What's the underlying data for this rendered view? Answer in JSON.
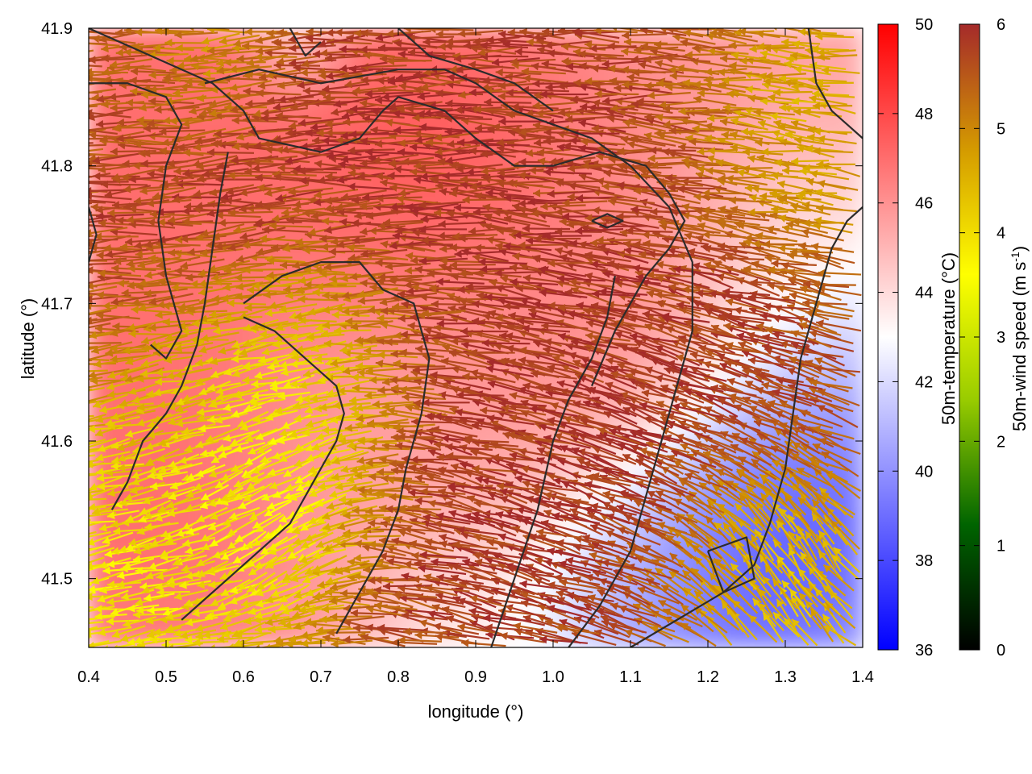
{
  "chart_data": {
    "type": "heatmap",
    "title": "",
    "xlabel": "longitude (°)",
    "ylabel": "latitude (°)",
    "xlim": [
      0.4,
      1.4
    ],
    "ylim": [
      41.45,
      41.9
    ],
    "xticks": [
      {
        "value": 0.4,
        "label": "0.4"
      },
      {
        "value": 0.5,
        "label": "0.5"
      },
      {
        "value": 0.6,
        "label": "0.6"
      },
      {
        "value": 0.7,
        "label": "0.7"
      },
      {
        "value": 0.8,
        "label": "0.8"
      },
      {
        "value": 0.9,
        "label": "0.9"
      },
      {
        "value": 1.0,
        "label": "1.0"
      },
      {
        "value": 1.1,
        "label": "1.1"
      },
      {
        "value": 1.2,
        "label": "1.2"
      },
      {
        "value": 1.3,
        "label": "1.3"
      },
      {
        "value": 1.4,
        "label": "1.4"
      }
    ],
    "yticks": [
      {
        "value": 41.5,
        "label": "41.5"
      },
      {
        "value": 41.6,
        "label": "41.6"
      },
      {
        "value": 41.7,
        "label": "41.7"
      },
      {
        "value": 41.8,
        "label": "41.8"
      },
      {
        "value": 41.9,
        "label": "41.9"
      }
    ],
    "grid": false,
    "temperature_colorbar": {
      "label": "50m-temperature (°C)",
      "range": [
        36,
        50
      ],
      "ticks": [
        {
          "value": 36,
          "label": "36"
        },
        {
          "value": 38,
          "label": "38"
        },
        {
          "value": 40,
          "label": "40"
        },
        {
          "value": 42,
          "label": "42"
        },
        {
          "value": 44,
          "label": "44"
        },
        {
          "value": 46,
          "label": "46"
        },
        {
          "value": 48,
          "label": "48"
        },
        {
          "value": 50,
          "label": "50"
        }
      ],
      "colors": [
        "#0000ff",
        "#ffffff",
        "#ff0000"
      ]
    },
    "wind_colorbar": {
      "label_main": "50m-wind speed (m s",
      "label_sup": "-1",
      "label_end": ")",
      "range": [
        0,
        6
      ],
      "ticks": [
        {
          "value": 0,
          "label": "0"
        },
        {
          "value": 1,
          "label": "1"
        },
        {
          "value": 2,
          "label": "2"
        },
        {
          "value": 3,
          "label": "3"
        },
        {
          "value": 4,
          "label": "4"
        },
        {
          "value": 5,
          "label": "5"
        },
        {
          "value": 6,
          "label": "6"
        }
      ],
      "colors": [
        "#000000",
        "#006400",
        "#99cc00",
        "#ffff00",
        "#d49a00",
        "#a52a2a"
      ]
    },
    "temperature_zones": [
      {
        "lon": 0.5,
        "lat": 41.8,
        "temp": 48.0,
        "spread": 0.2
      },
      {
        "lon": 0.62,
        "lat": 41.86,
        "temp": 47.0,
        "spread": 0.16
      },
      {
        "lon": 0.85,
        "lat": 41.8,
        "temp": 49.0,
        "spread": 0.12
      },
      {
        "lon": 1.05,
        "lat": 41.78,
        "temp": 47.0,
        "spread": 0.18
      },
      {
        "lon": 1.25,
        "lat": 41.85,
        "temp": 46.0,
        "spread": 0.15
      },
      {
        "lon": 0.5,
        "lat": 41.55,
        "temp": 48.0,
        "spread": 0.15
      },
      {
        "lon": 0.45,
        "lat": 41.65,
        "temp": 47.0,
        "spread": 0.12
      },
      {
        "lon": 0.75,
        "lat": 41.6,
        "temp": 45.0,
        "spread": 0.14
      },
      {
        "lon": 0.9,
        "lat": 41.58,
        "temp": 46.0,
        "spread": 0.12
      },
      {
        "lon": 1.0,
        "lat": 41.68,
        "temp": 46.0,
        "spread": 0.12
      },
      {
        "lon": 1.3,
        "lat": 41.75,
        "temp": 43.0,
        "spread": 0.1
      },
      {
        "lon": 1.25,
        "lat": 41.5,
        "temp": 37.0,
        "spread": 0.12
      },
      {
        "lon": 1.35,
        "lat": 41.56,
        "temp": 37.5,
        "spread": 0.1
      },
      {
        "lon": 1.38,
        "lat": 41.66,
        "temp": 40.0,
        "spread": 0.1
      },
      {
        "lon": 1.08,
        "lat": 41.5,
        "temp": 40.0,
        "spread": 0.09
      },
      {
        "lon": 0.9,
        "lat": 41.47,
        "temp": 42.5,
        "spread": 0.08
      },
      {
        "lon": 0.67,
        "lat": 41.89,
        "temp": 41.0,
        "spread": 0.04
      }
    ],
    "wind_vectors_description": "dense field of wind arrows pointing mostly west, coloured by wind speed",
    "wind_zones": [
      {
        "lon": 0.95,
        "lat": 41.76,
        "speed": 6.0,
        "dir": 180,
        "spread": 0.22
      },
      {
        "lon": 0.65,
        "lat": 41.8,
        "speed": 6.0,
        "dir": 185,
        "spread": 0.16
      },
      {
        "lon": 1.15,
        "lat": 41.6,
        "speed": 6.0,
        "dir": 150,
        "spread": 0.18
      },
      {
        "lon": 0.9,
        "lat": 41.55,
        "speed": 6.0,
        "dir": 165,
        "spread": 0.15
      },
      {
        "lon": 0.7,
        "lat": 41.65,
        "speed": 2.2,
        "dir": 200,
        "spread": 0.09
      },
      {
        "lon": 0.68,
        "lat": 41.55,
        "speed": 2.5,
        "dir": 240,
        "spread": 0.08
      },
      {
        "lon": 0.52,
        "lat": 41.58,
        "speed": 4.0,
        "dir": 200,
        "spread": 0.08
      },
      {
        "lon": 0.48,
        "lat": 41.5,
        "speed": 3.5,
        "dir": 190,
        "spread": 0.08
      },
      {
        "lon": 1.3,
        "lat": 41.5,
        "speed": 3.5,
        "dir": 95,
        "spread": 0.08
      },
      {
        "lon": 1.35,
        "lat": 41.82,
        "speed": 4.2,
        "dir": 170,
        "spread": 0.08
      },
      {
        "lon": 0.6,
        "lat": 41.88,
        "speed": 4.2,
        "dir": 185,
        "spread": 0.06
      }
    ],
    "contours": [
      [
        [
          0.4,
          41.9
        ],
        [
          0.48,
          41.88
        ],
        [
          0.56,
          41.86
        ],
        [
          0.6,
          41.84
        ],
        [
          0.62,
          41.82
        ],
        [
          0.7,
          41.81
        ],
        [
          0.75,
          41.82
        ],
        [
          0.78,
          41.84
        ],
        [
          0.8,
          41.85
        ],
        [
          0.86,
          41.84
        ],
        [
          0.9,
          41.82
        ],
        [
          0.95,
          41.8
        ],
        [
          1.0,
          41.8
        ],
        [
          1.06,
          41.81
        ],
        [
          1.12,
          41.8
        ],
        [
          1.15,
          41.78
        ],
        [
          1.17,
          41.76
        ],
        [
          1.15,
          41.74
        ],
        [
          1.12,
          41.72
        ],
        [
          1.1,
          41.7
        ],
        [
          1.08,
          41.68
        ],
        [
          1.05,
          41.64
        ]
      ],
      [
        [
          0.55,
          41.86
        ],
        [
          0.62,
          41.87
        ],
        [
          0.7,
          41.86
        ],
        [
          0.8,
          41.87
        ],
        [
          0.86,
          41.87
        ],
        [
          0.9,
          41.86
        ],
        [
          0.95,
          41.84
        ],
        [
          1.0,
          41.83
        ],
        [
          1.05,
          41.82
        ],
        [
          1.1,
          41.8
        ],
        [
          1.15,
          41.77
        ],
        [
          1.18,
          41.73
        ],
        [
          1.18,
          41.68
        ],
        [
          1.16,
          41.64
        ],
        [
          1.14,
          41.6
        ],
        [
          1.12,
          41.56
        ],
        [
          1.1,
          41.52
        ],
        [
          1.06,
          41.48
        ],
        [
          1.02,
          41.45
        ]
      ],
      [
        [
          0.58,
          41.81
        ],
        [
          0.57,
          41.78
        ],
        [
          0.56,
          41.74
        ],
        [
          0.55,
          41.7
        ],
        [
          0.54,
          41.67
        ],
        [
          0.52,
          41.64
        ],
        [
          0.5,
          41.62
        ],
        [
          0.47,
          41.6
        ],
        [
          0.45,
          41.57
        ],
        [
          0.43,
          41.55
        ]
      ],
      [
        [
          0.6,
          41.7
        ],
        [
          0.65,
          41.72
        ],
        [
          0.7,
          41.73
        ],
        [
          0.75,
          41.73
        ],
        [
          0.78,
          41.71
        ],
        [
          0.82,
          41.7
        ],
        [
          0.84,
          41.66
        ],
        [
          0.83,
          41.62
        ],
        [
          0.81,
          41.58
        ],
        [
          0.8,
          41.55
        ],
        [
          0.78,
          41.52
        ],
        [
          0.75,
          41.49
        ],
        [
          0.72,
          41.46
        ]
      ],
      [
        [
          0.52,
          41.47
        ],
        [
          0.58,
          41.5
        ],
        [
          0.62,
          41.52
        ],
        [
          0.66,
          41.54
        ],
        [
          0.68,
          41.56
        ],
        [
          0.7,
          41.58
        ],
        [
          0.72,
          41.6
        ],
        [
          0.73,
          41.62
        ],
        [
          0.72,
          41.64
        ],
        [
          0.68,
          41.66
        ],
        [
          0.64,
          41.68
        ],
        [
          0.6,
          41.69
        ]
      ],
      [
        [
          0.92,
          41.45
        ],
        [
          0.95,
          41.5
        ],
        [
          0.98,
          41.55
        ],
        [
          1.0,
          41.6
        ],
        [
          1.02,
          41.63
        ],
        [
          1.05,
          41.66
        ],
        [
          1.07,
          41.69
        ],
        [
          1.08,
          41.72
        ]
      ],
      [
        [
          1.1,
          41.45
        ],
        [
          1.16,
          41.47
        ],
        [
          1.22,
          41.49
        ],
        [
          1.26,
          41.51
        ],
        [
          1.28,
          41.54
        ],
        [
          1.3,
          41.58
        ],
        [
          1.31,
          41.62
        ],
        [
          1.32,
          41.66
        ],
        [
          1.34,
          41.7
        ],
        [
          1.36,
          41.74
        ],
        [
          1.38,
          41.76
        ],
        [
          1.4,
          41.77
        ]
      ],
      [
        [
          1.2,
          41.52
        ],
        [
          1.25,
          41.53
        ],
        [
          1.26,
          41.5
        ],
        [
          1.22,
          41.49
        ],
        [
          1.2,
          41.52
        ]
      ],
      [
        [
          1.05,
          41.76
        ],
        [
          1.07,
          41.765
        ],
        [
          1.09,
          41.76
        ],
        [
          1.07,
          41.755
        ],
        [
          1.05,
          41.76
        ]
      ],
      [
        [
          0.8,
          41.9
        ],
        [
          0.84,
          41.88
        ],
        [
          0.9,
          41.87
        ],
        [
          0.95,
          41.86
        ],
        [
          1.0,
          41.84
        ]
      ],
      [
        [
          0.66,
          41.9
        ],
        [
          0.68,
          41.88
        ],
        [
          0.7,
          41.89
        ]
      ],
      [
        [
          1.33,
          41.9
        ],
        [
          1.34,
          41.86
        ],
        [
          1.36,
          41.84
        ],
        [
          1.38,
          41.83
        ],
        [
          1.4,
          41.82
        ]
      ],
      [
        [
          0.4,
          41.77
        ],
        [
          0.41,
          41.75
        ],
        [
          0.4,
          41.73
        ]
      ],
      [
        [
          0.48,
          41.67
        ],
        [
          0.5,
          41.66
        ],
        [
          0.52,
          41.68
        ],
        [
          0.5,
          41.72
        ],
        [
          0.49,
          41.76
        ],
        [
          0.5,
          41.8
        ],
        [
          0.52,
          41.83
        ],
        [
          0.5,
          41.85
        ],
        [
          0.45,
          41.86
        ],
        [
          0.4,
          41.86
        ]
      ]
    ]
  }
}
